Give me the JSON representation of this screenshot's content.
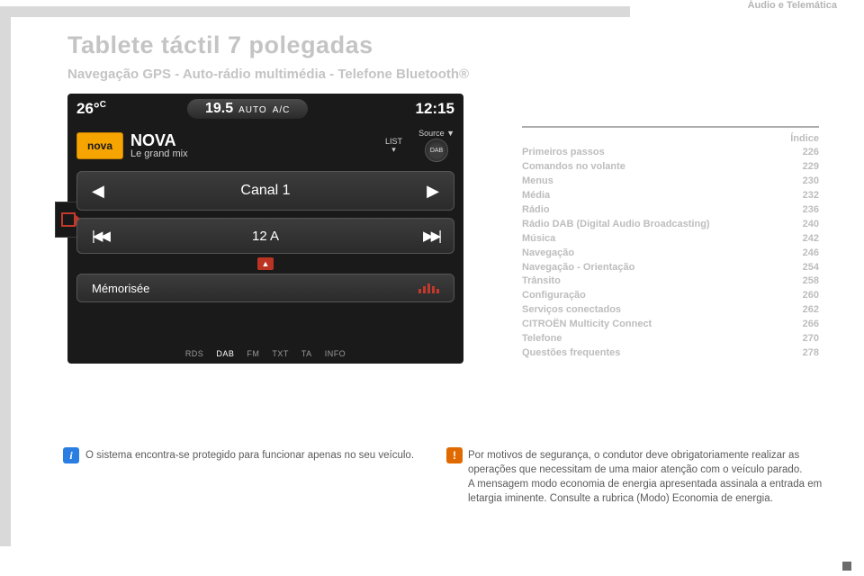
{
  "header": {
    "section": "Áudio e Telemática"
  },
  "title": "Tablete táctil 7 polegadas",
  "subtitle": "Navegação GPS - Auto-rádio multimédia - Telefone Bluetooth®",
  "touchscreen": {
    "temp": "26°",
    "temp_unit": "C",
    "climate_value": "19.5",
    "climate_mode": "AUTO",
    "climate_ac": "A/C",
    "clock": "12:15",
    "station_badge": "nova",
    "station_name": "NOVA",
    "station_slogan": "Le grand mix",
    "list_label": "LIST",
    "source_label": "Source ▼",
    "dab_label": "DAB",
    "channel": "Canal 1",
    "band": "12 A",
    "memorised": "Mémorisée",
    "footer": [
      "RDS",
      "DAB",
      "FM",
      "TXT",
      "TA",
      "INFO"
    ],
    "footer_active_index": 1,
    "colors": {
      "background": "#1a1a1a",
      "accent": "#c0392b",
      "nova": "#f6a400"
    }
  },
  "index": {
    "heading": "Índice",
    "rows": [
      {
        "label": "Primeiros passos",
        "page": "226"
      },
      {
        "label": "Comandos no volante",
        "page": "229"
      },
      {
        "label": "Menus",
        "page": "230"
      },
      {
        "label": "Média",
        "page": "232"
      },
      {
        "label": "Rádio",
        "page": "236"
      },
      {
        "label": "Rádio DAB (Digital Audio Broadcasting)",
        "page": "240"
      },
      {
        "label": "Música",
        "page": "242"
      },
      {
        "label": "Navegação",
        "page": "246"
      },
      {
        "label": "Navegação - Orientação",
        "page": "254"
      },
      {
        "label": "Trânsito",
        "page": "258"
      },
      {
        "label": "Configuração",
        "page": "260"
      },
      {
        "label": "Serviços conectados",
        "page": "262"
      },
      {
        "label": "CITROËN Multicity Connect",
        "page": "266"
      },
      {
        "label": "Telefone",
        "page": "270"
      },
      {
        "label": "Questões frequentes",
        "page": "278"
      }
    ]
  },
  "notes": {
    "info_icon": "i",
    "info": "O sistema encontra-se protegido para funcionar apenas no seu veículo.",
    "warn_icon": "!",
    "warn": "Por motivos de segurança, o condutor deve obrigatoriamente realizar as operações que necessitam de uma maior atenção com o veículo parado.\nA mensagem modo economia de energia apresentada assinala a entrada em letargia iminente. Consulte a rubrica (Modo) Economia de energia."
  },
  "styling": {
    "page_bg": "#ffffff",
    "muted_text": "#bdbdbd",
    "body_text": "#5a5a5a",
    "title_fontsize": 27,
    "subtitle_fontsize": 15,
    "index_fontsize": 11,
    "note_fontsize": 11.5,
    "info_badge_bg": "#2a7de1",
    "warn_badge_bg": "#e06a00",
    "grey_strip": "#d9d9d9"
  }
}
